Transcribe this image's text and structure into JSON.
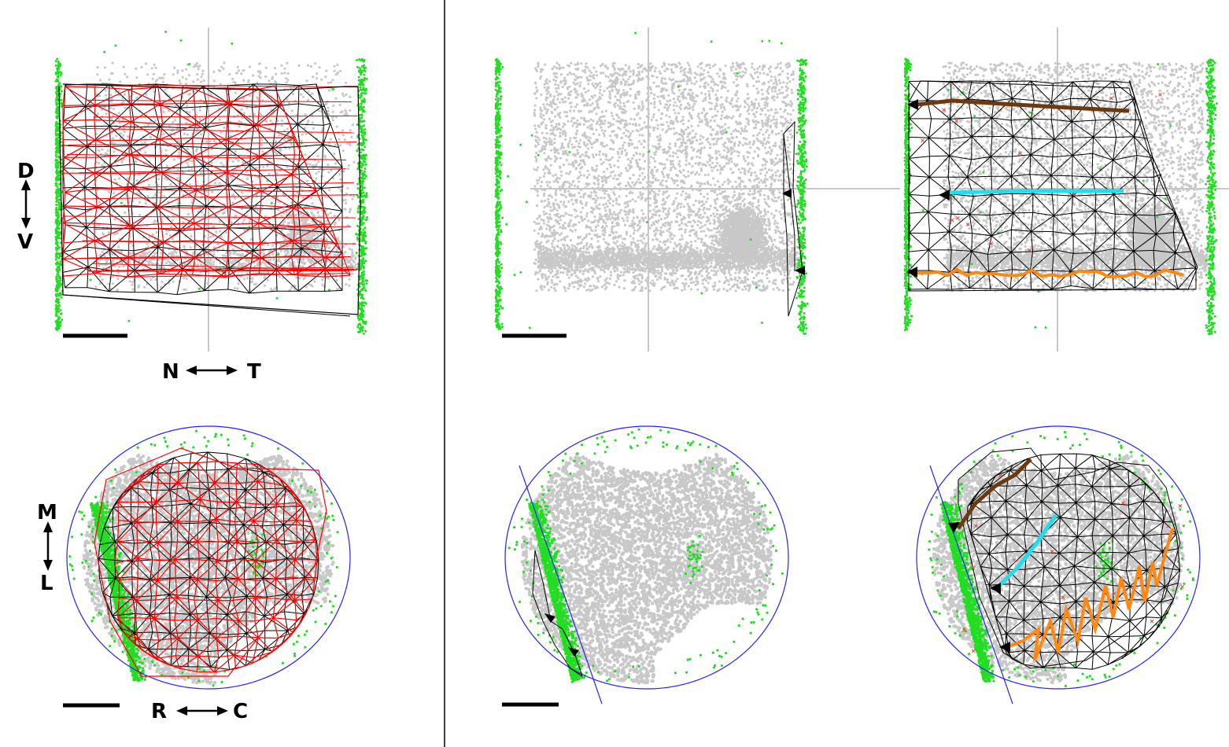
{
  "labels": {
    "nasal": "N",
    "temporal": "T",
    "dorsal": "D",
    "ventral": "V",
    "medial": "M",
    "lateral": "L",
    "rostral": "R",
    "caudal": "C"
  },
  "colors": {
    "cells": "#c8c8c8",
    "boundary_cells": "#22dd22",
    "mesh_black": "#000000",
    "mesh_red": "#ff0000",
    "outline": "#2222ff",
    "midline": "#b4b4b4",
    "track_brown": "#6b3a10",
    "track_cyan": "#22ddee",
    "track_orange": "#ff8811",
    "marker_x": "#e04040"
  },
  "panels": [
    {
      "id": "retina-overlay",
      "view": "retina",
      "mesh": "overlay"
    },
    {
      "id": "retina-edge",
      "view": "retina",
      "mesh": "edge"
    },
    {
      "id": "retina-tracks",
      "view": "retina",
      "mesh": "tracks"
    },
    {
      "id": "colliculus-overlay",
      "view": "colliculus",
      "mesh": "overlay"
    },
    {
      "id": "colliculus-edge",
      "view": "colliculus",
      "mesh": "edge"
    },
    {
      "id": "colliculus-tracks",
      "view": "colliculus",
      "mesh": "tracks"
    }
  ]
}
